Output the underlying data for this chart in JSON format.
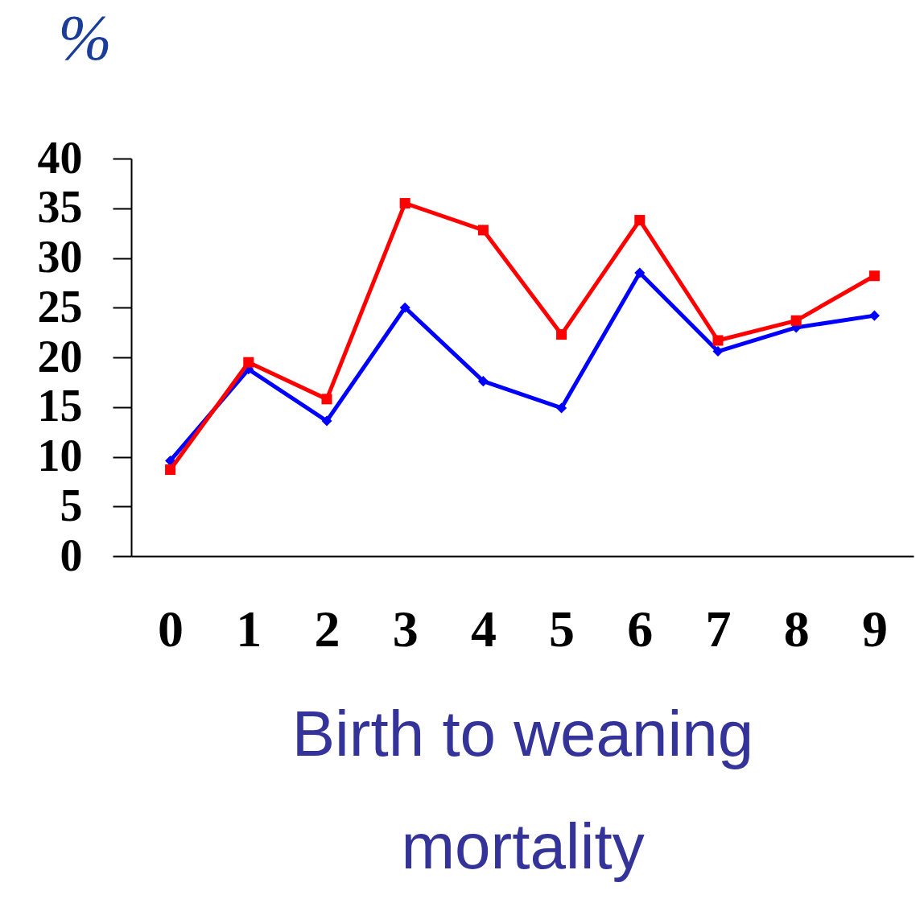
{
  "chart_data": {
    "type": "line",
    "ylabel": "%",
    "xlabel": "Birth to weaning mortality",
    "categories": [
      "0",
      "1",
      "2",
      "3",
      "4",
      "5",
      "6",
      "7",
      "8",
      "9"
    ],
    "series": [
      {
        "color": "#0000ff",
        "marker": "diamond",
        "values": [
          9.6,
          18.8,
          13.6,
          25.0,
          17.6,
          14.9,
          28.5,
          20.6,
          23.0,
          24.2
        ]
      },
      {
        "color": "#ff0000",
        "marker": "square",
        "values": [
          8.7,
          19.5,
          15.8,
          35.5,
          32.8,
          22.3,
          33.8,
          21.7,
          23.7,
          28.2
        ]
      }
    ],
    "ylim": [
      0,
      40
    ],
    "yticks": [
      0,
      5,
      10,
      15,
      20,
      25,
      30,
      35,
      40
    ],
    "line_style": "solid"
  }
}
